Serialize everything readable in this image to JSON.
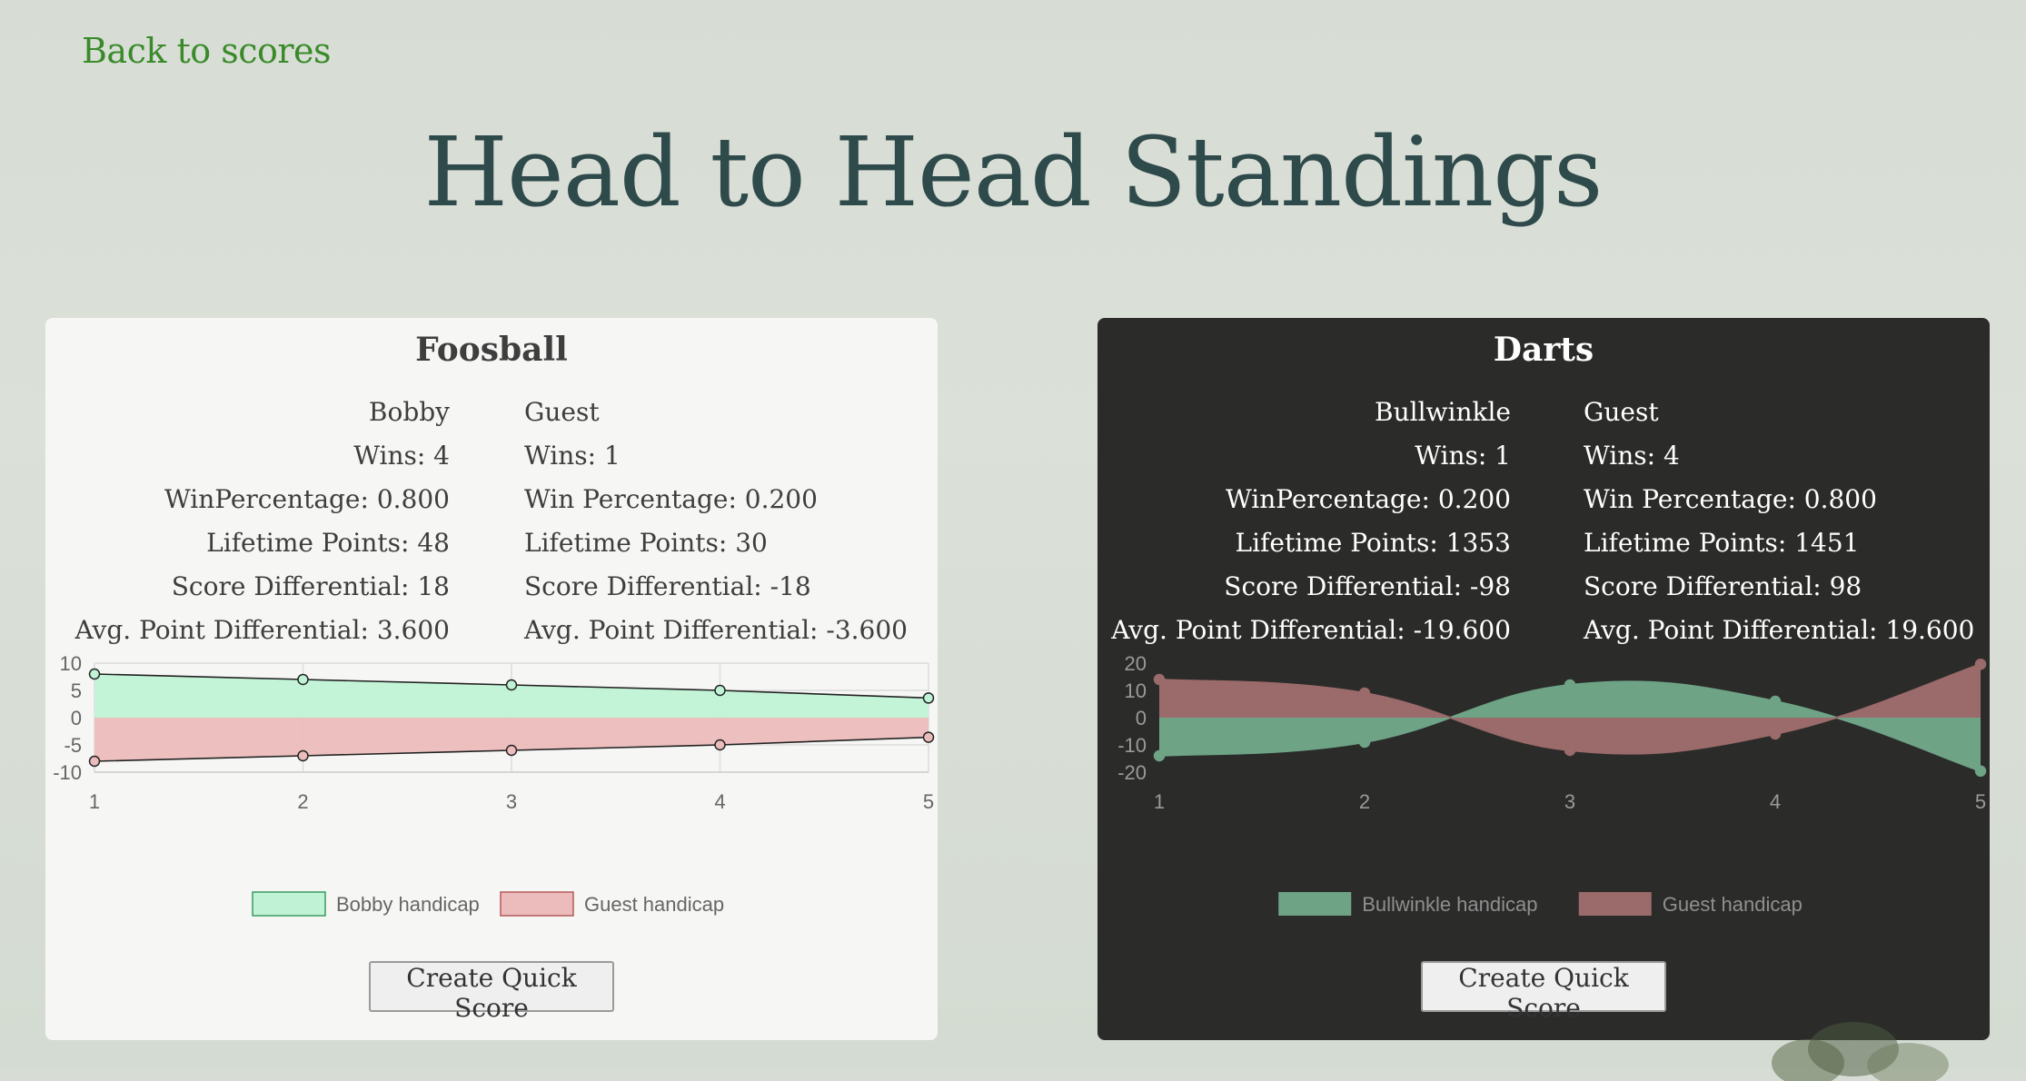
{
  "nav": {
    "back_label": "Back to scores"
  },
  "page": {
    "title": "Head to Head Standings"
  },
  "cards": [
    {
      "title": "Foosball",
      "theme": "light",
      "player1": {
        "name": "Bobby",
        "wins": "Wins: 4",
        "win_pct": "WinPercentage: 0.800",
        "lifetime": "Lifetime Points: 48",
        "score_diff": "Score Differential: 18",
        "avg_diff": "Avg. Point Differential: 3.600"
      },
      "player2": {
        "name": "Guest",
        "wins": "Wins: 1",
        "win_pct": "Win Percentage: 0.200",
        "lifetime": "Lifetime Points: 30",
        "score_diff": "Score Differential: -18",
        "avg_diff": "Avg. Point Differential: -3.600"
      },
      "button_label": "Create Quick Score",
      "chart_data": {
        "type": "area",
        "x": [
          1,
          2,
          3,
          4,
          5
        ],
        "ylim": [
          -10,
          10
        ],
        "yticks": [
          10,
          5,
          0,
          -5,
          -10
        ],
        "smooth": false,
        "series": [
          {
            "name": "Bobby handicap",
            "values": [
              8,
              7,
              6,
              5,
              3.6
            ],
            "color": "#c0f3d5",
            "border": "#222222"
          },
          {
            "name": "Guest handicap",
            "values": [
              -8,
              -7,
              -6,
              -5,
              -3.6
            ],
            "color": "#ecbcbc",
            "border": "#222222"
          }
        ],
        "grid": true,
        "legend": "bottom"
      }
    },
    {
      "title": "Darts",
      "theme": "dark",
      "player1": {
        "name": "Bullwinkle",
        "wins": "Wins: 1",
        "win_pct": "WinPercentage: 0.200",
        "lifetime": "Lifetime Points: 1353",
        "score_diff": "Score Differential: -98",
        "avg_diff": "Avg. Point Differential: -19.600"
      },
      "player2": {
        "name": "Guest",
        "wins": "Wins: 4",
        "win_pct": "Win Percentage: 0.800",
        "lifetime": "Lifetime Points: 1451",
        "score_diff": "Score Differential: 98",
        "avg_diff": "Avg. Point Differential: 19.600"
      },
      "button_label": "Create Quick Score",
      "chart_data": {
        "type": "area",
        "x": [
          1,
          2,
          3,
          4,
          5
        ],
        "ylim": [
          -20,
          20
        ],
        "yticks": [
          20,
          10,
          0,
          -10,
          -20
        ],
        "smooth": true,
        "series": [
          {
            "name": "Bullwinkle handicap",
            "values": [
              -14,
              -9,
              12,
              6,
              -19.6
            ],
            "color": "#6ea386",
            "border": "#6ea386"
          },
          {
            "name": "Guest handicap",
            "values": [
              14,
              9,
              -12,
              -6,
              19.6
            ],
            "color": "#9b6a6a",
            "border": "#9b6a6a"
          }
        ],
        "grid": false,
        "legend": "bottom"
      }
    }
  ]
}
